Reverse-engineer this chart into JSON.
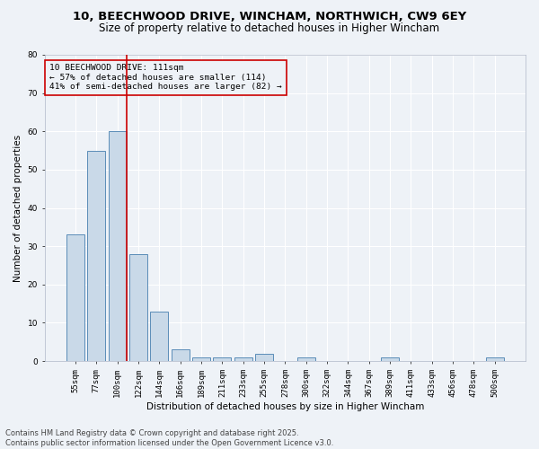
{
  "title_line1": "10, BEECHWOOD DRIVE, WINCHAM, NORTHWICH, CW9 6EY",
  "title_line2": "Size of property relative to detached houses in Higher Wincham",
  "xlabel": "Distribution of detached houses by size in Higher Wincham",
  "ylabel": "Number of detached properties",
  "categories": [
    "55sqm",
    "77sqm",
    "100sqm",
    "122sqm",
    "144sqm",
    "166sqm",
    "189sqm",
    "211sqm",
    "233sqm",
    "255sqm",
    "278sqm",
    "300sqm",
    "322sqm",
    "344sqm",
    "367sqm",
    "389sqm",
    "411sqm",
    "433sqm",
    "456sqm",
    "478sqm",
    "500sqm"
  ],
  "values": [
    33,
    55,
    60,
    28,
    13,
    3,
    1,
    1,
    1,
    2,
    0,
    1,
    0,
    0,
    0,
    1,
    0,
    0,
    0,
    0,
    1
  ],
  "bar_color": "#c9d9e8",
  "bar_edge_color": "#5b8db8",
  "vline_x_index": 2,
  "vline_color": "#cc0000",
  "annotation_text": "10 BEECHWOOD DRIVE: 111sqm\n← 57% of detached houses are smaller (114)\n41% of semi-detached houses are larger (82) →",
  "annotation_box_edge": "#cc0000",
  "ylim": [
    0,
    80
  ],
  "yticks": [
    0,
    10,
    20,
    30,
    40,
    50,
    60,
    70,
    80
  ],
  "background_color": "#eef2f7",
  "grid_color": "#ffffff",
  "footer_text": "Contains HM Land Registry data © Crown copyright and database right 2025.\nContains public sector information licensed under the Open Government Licence v3.0.",
  "title_fontsize": 9.5,
  "subtitle_fontsize": 8.5,
  "axis_label_fontsize": 7.5,
  "tick_fontsize": 6.5,
  "annotation_fontsize": 6.8,
  "footer_fontsize": 6.0
}
